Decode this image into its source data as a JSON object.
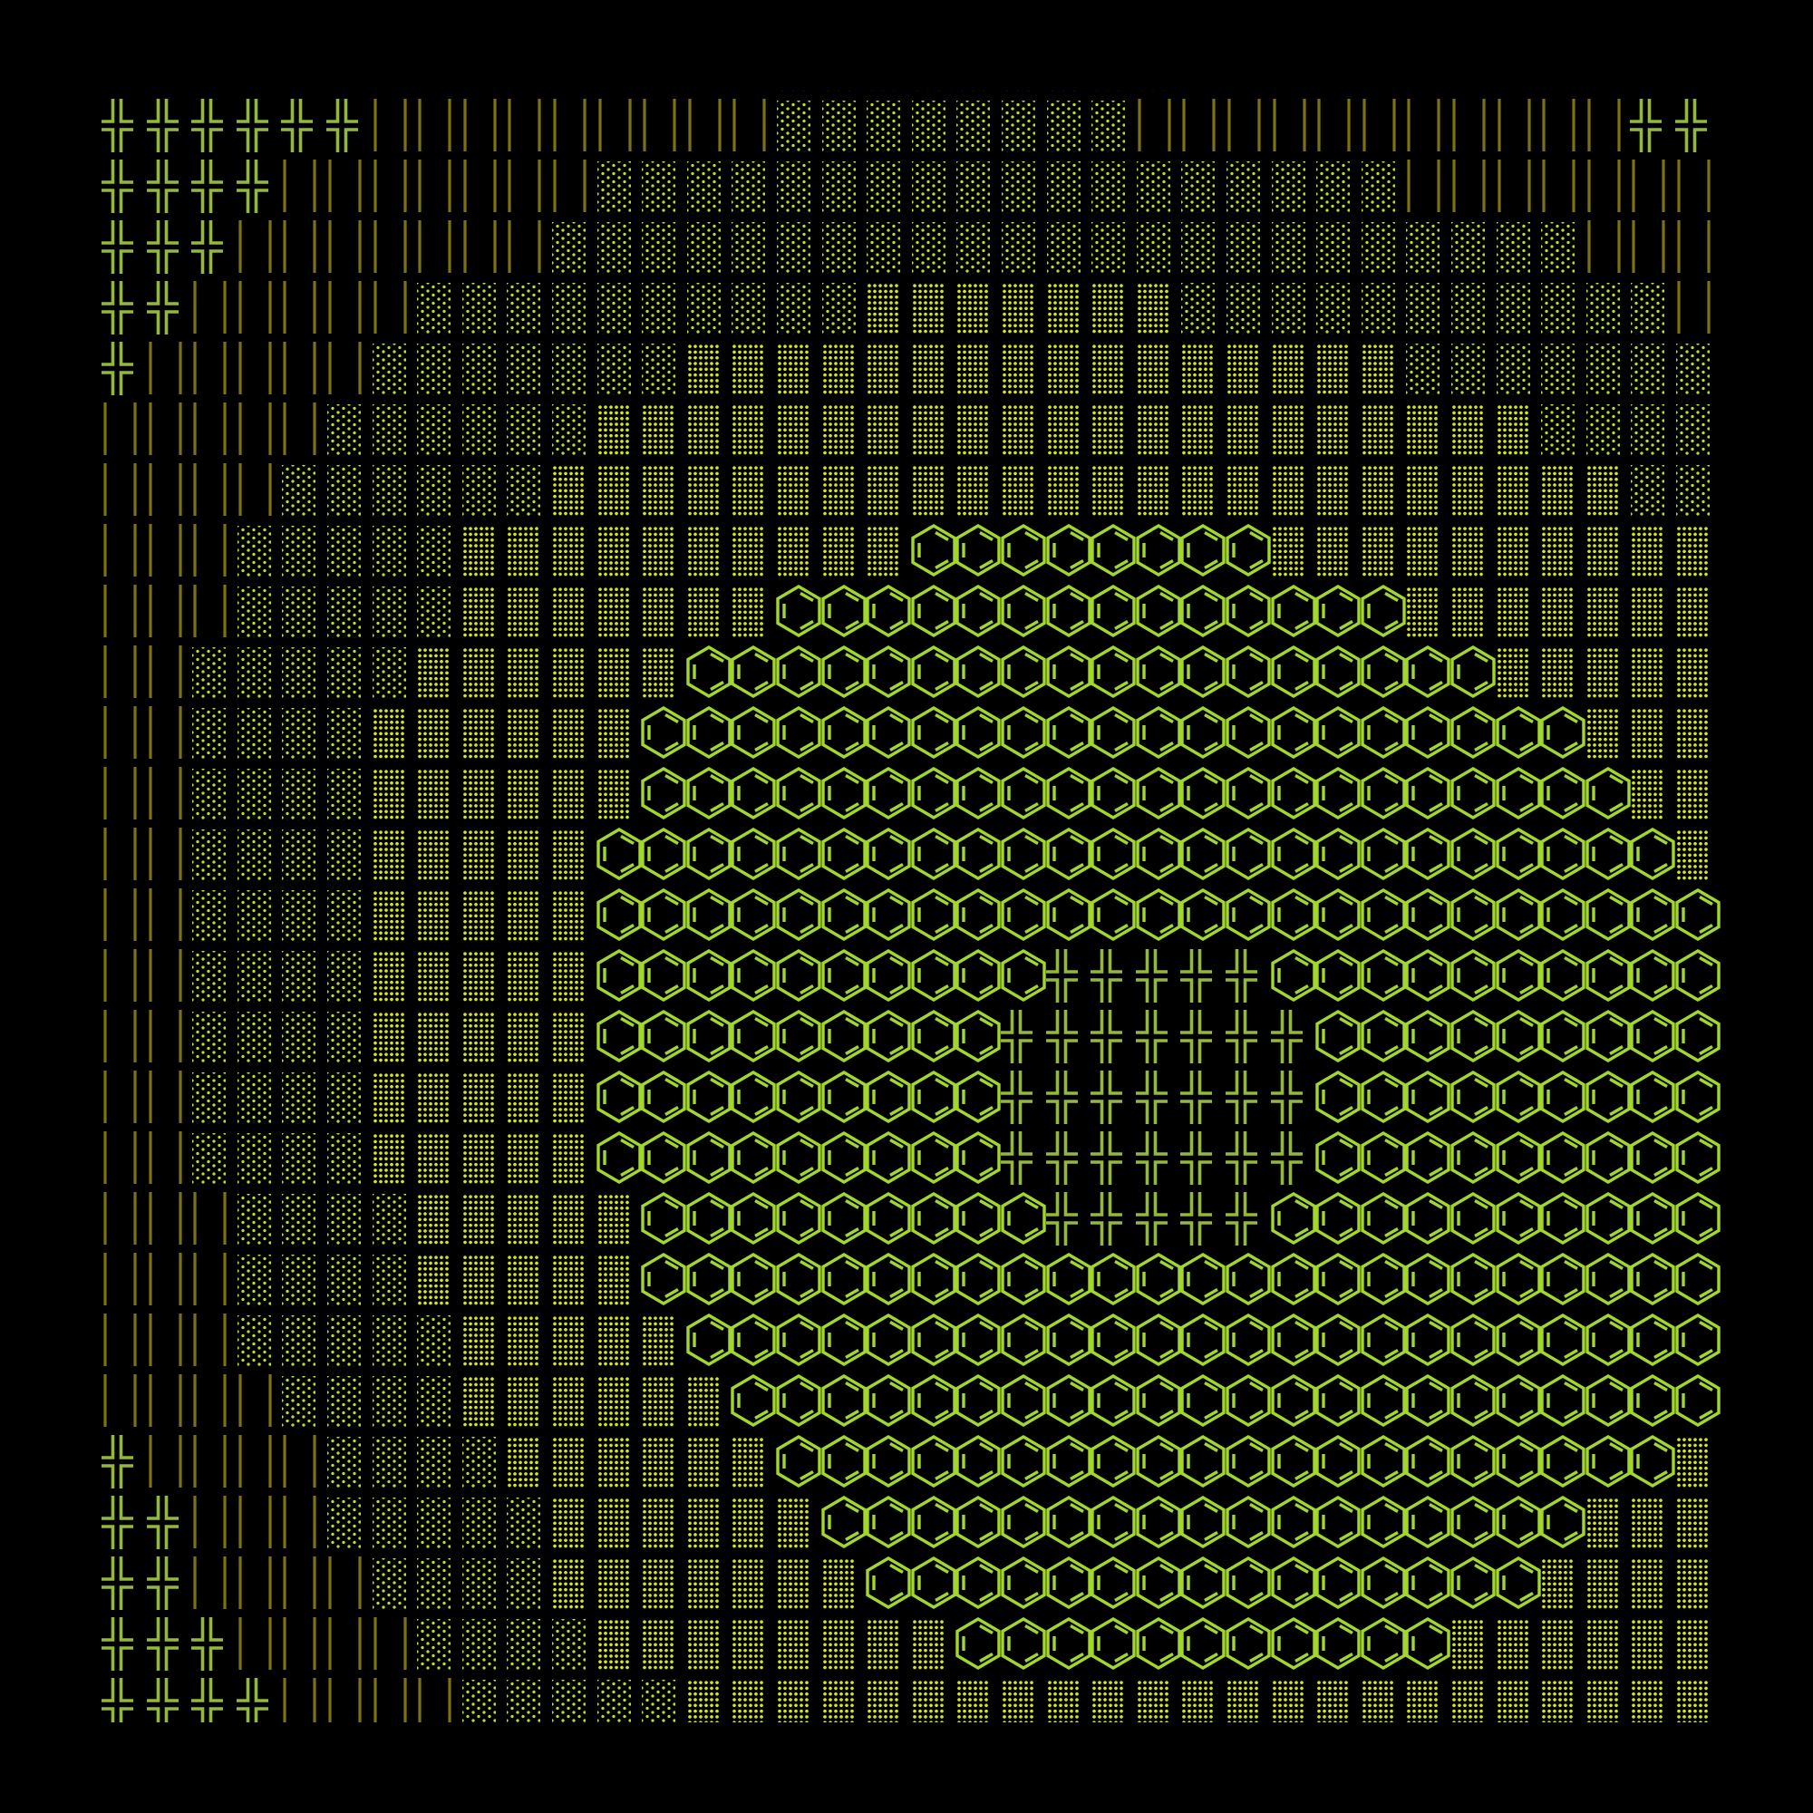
{
  "palette": {
    "background": "#000000",
    "cross": "#94b83c",
    "bars": "#7d7212",
    "sparse": "#b4e02a",
    "dense": "#d6e61c",
    "benzene": "#a2d82e"
  },
  "glyphs": {
    "cross": "╬",
    "bars": "║",
    "sparse": "░",
    "dense": "▒",
    "benzene": "⌬"
  },
  "rows": [
    "        ║║║║║║║░░░░░░░░░║║║║║║║     ",
    "╬╬╬╬╬╬║║║║║║║║║░░░░░░░░║║║║║║║║║║║╬╬",
    "╬╬╬╬║║║║║║║░░░░░░░░░░░░░░░░░░║║║║║║║",
    "╬╬╬║║║║║║║░░░░░░░░░░░░░░░░░░░░░░░║║║║",
    "╬╬║║║║║░░░░░░░░░░▒▒▒▒▒▒▒░░░░░░░░░░░║",
    "╬║║║║║░░░░░░░▒▒▒▒▒▒▒▒▒▒▒▒▒▒▒▒░░░░░░░",
    "║║║║║░░░░░░▒▒▒▒▒▒▒▒▒▒▒▒▒▒▒▒▒▒▒▒▒░░░░",
    "║║║║░░░░░░▒▒▒▒▒▒▒▒▒▒▒▒▒▒▒▒▒▒▒▒▒▒▒▒░░",
    "║║║░░░░░▒▒▒▒▒▒▒▒▒▒⌬⌬⌬⌬⌬⌬⌬⌬▒▒▒▒▒▒▒▒▒▒",
    "║║║░░░░░▒▒▒▒▒▒▒⌬⌬⌬⌬⌬⌬⌬⌬⌬⌬⌬⌬⌬⌬▒▒▒▒▒▒▒",
    "║║░░░░░▒▒▒▒▒▒⌬⌬⌬⌬⌬⌬⌬⌬⌬⌬⌬⌬⌬⌬⌬⌬⌬⌬▒▒▒▒▒",
    "║║░░░░▒▒▒▒▒▒⌬⌬⌬⌬⌬⌬⌬⌬⌬⌬⌬⌬⌬⌬⌬⌬⌬⌬⌬⌬⌬▒▒▒",
    "║║░░░░▒▒▒▒▒▒⌬⌬⌬⌬⌬⌬⌬⌬⌬⌬⌬⌬⌬⌬⌬⌬⌬⌬⌬⌬⌬⌬▒▒",
    "║║░░░░▒▒▒▒▒⌬⌬⌬⌬⌬⌬⌬⌬⌬⌬⌬⌬⌬⌬⌬⌬⌬⌬⌬⌬⌬⌬⌬⌬▒",
    "║║░░░░▒▒▒▒▒⌬⌬⌬⌬⌬⌬⌬⌬⌬⌬⌬⌬⌬⌬⌬⌬⌬⌬⌬⌬⌬⌬⌬⌬⌬",
    "║║░░░░▒▒▒▒▒⌬⌬⌬⌬⌬⌬⌬⌬⌬⌬╬╬╬╬╬⌬⌬⌬⌬⌬⌬⌬⌬⌬⌬",
    "║║░░░░▒▒▒▒▒⌬⌬⌬⌬⌬⌬⌬⌬⌬╬╬╬╬╬╬╬⌬⌬⌬⌬⌬⌬⌬⌬⌬",
    "║║░░░░▒▒▒▒▒⌬⌬⌬⌬⌬⌬⌬⌬⌬╬╬╬╬╬╬╬⌬⌬⌬⌬⌬⌬⌬⌬⌬",
    "║║░░░░▒▒▒▒▒⌬⌬⌬⌬⌬⌬⌬⌬⌬╬╬╬╬╬╬╬⌬⌬⌬⌬⌬⌬⌬⌬⌬",
    "║║║░░░░▒▒▒▒▒⌬⌬⌬⌬⌬⌬⌬⌬⌬╬╬╬╬╬⌬⌬⌬⌬⌬⌬⌬⌬⌬⌬",
    "║║║░░░░▒▒▒▒▒⌬⌬⌬⌬⌬⌬⌬⌬⌬⌬⌬⌬⌬⌬⌬⌬⌬⌬⌬⌬⌬⌬⌬⌬",
    "║║║░░░░░▒▒▒▒▒⌬⌬⌬⌬⌬⌬⌬⌬⌬⌬⌬⌬⌬⌬⌬⌬⌬⌬⌬⌬⌬⌬⌬",
    "║║║║░░░░▒▒▒▒▒▒⌬⌬⌬⌬⌬⌬⌬⌬⌬⌬⌬⌬⌬⌬⌬⌬⌬⌬⌬⌬⌬⌬",
    "╬║║║║░░░░▒▒▒▒▒▒⌬⌬⌬⌬⌬⌬⌬⌬⌬⌬⌬⌬⌬⌬⌬⌬⌬⌬⌬⌬▒",
    "╬╬║║║░░░░░▒▒▒▒▒▒⌬⌬⌬⌬⌬⌬⌬⌬⌬⌬⌬⌬⌬⌬⌬⌬⌬▒▒▒",
    "╬╬║║║║░░░░▒▒▒▒▒▒▒⌬⌬⌬⌬⌬⌬⌬⌬⌬⌬⌬⌬⌬⌬⌬▒▒▒▒",
    "╬╬╬║║║║░░░░▒▒▒▒▒▒▒▒⌬⌬⌬⌬⌬⌬⌬⌬⌬⌬⌬▒▒▒▒▒▒",
    "╬╬╬╬║║║║░░░░░▒▒▒▒▒▒▒▒▒▒▒▒▒▒▒▒▒▒▒▒▒▒▒"
  ]
}
